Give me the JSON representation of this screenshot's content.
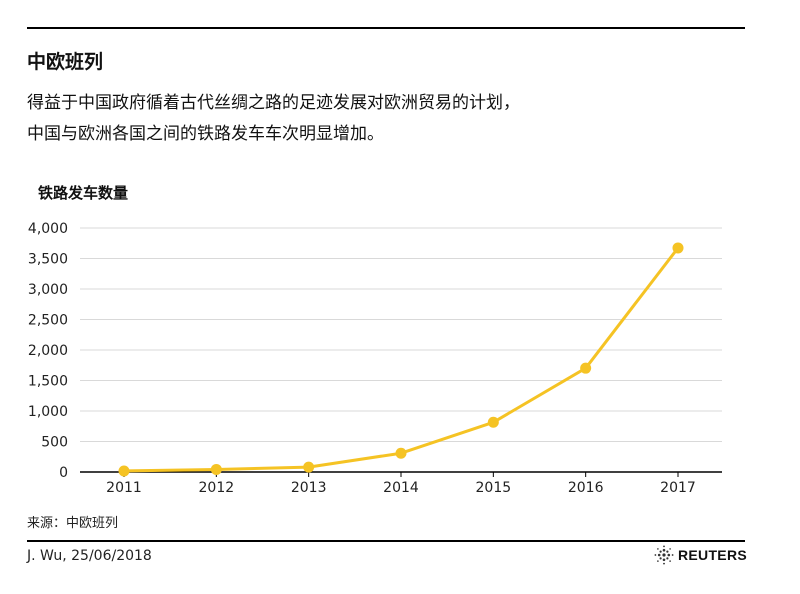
{
  "title": "中欧班列",
  "subtitle_lines": [
    "得益于中国政府循着古代丝绸之路的足迹发展对欧洲贸易的计划，",
    "中国与欧洲各国之间的铁路发车车次明显增加。"
  ],
  "footer": {
    "source": "来源：中欧班列",
    "credit": "J. Wu,  25/06/2018",
    "brand": "REUTERS",
    "brand_icon": "reuters-logo-icon"
  },
  "colors": {
    "line": "#F5C324",
    "grid": "#d9d9d9",
    "axis": "#000000"
  },
  "chart_data": {
    "type": "line",
    "title": "",
    "ylabel": "铁路发车数量",
    "xlabel": "",
    "categories": [
      "2011",
      "2012",
      "2013",
      "2014",
      "2015",
      "2016",
      "2017"
    ],
    "series": [
      {
        "values": [
          17,
          42,
          80,
          308,
          815,
          1702,
          3673
        ]
      }
    ],
    "ylim": [
      0,
      4000
    ],
    "yticks": [
      0,
      500,
      1000,
      1500,
      2000,
      2500,
      3000,
      3500,
      4000
    ],
    "ytick_labels": [
      "0",
      "500",
      "1,000",
      "1,500",
      "2,000",
      "2,500",
      "3,000",
      "3,500",
      "4,000"
    ],
    "grid": true,
    "legend": "none"
  }
}
